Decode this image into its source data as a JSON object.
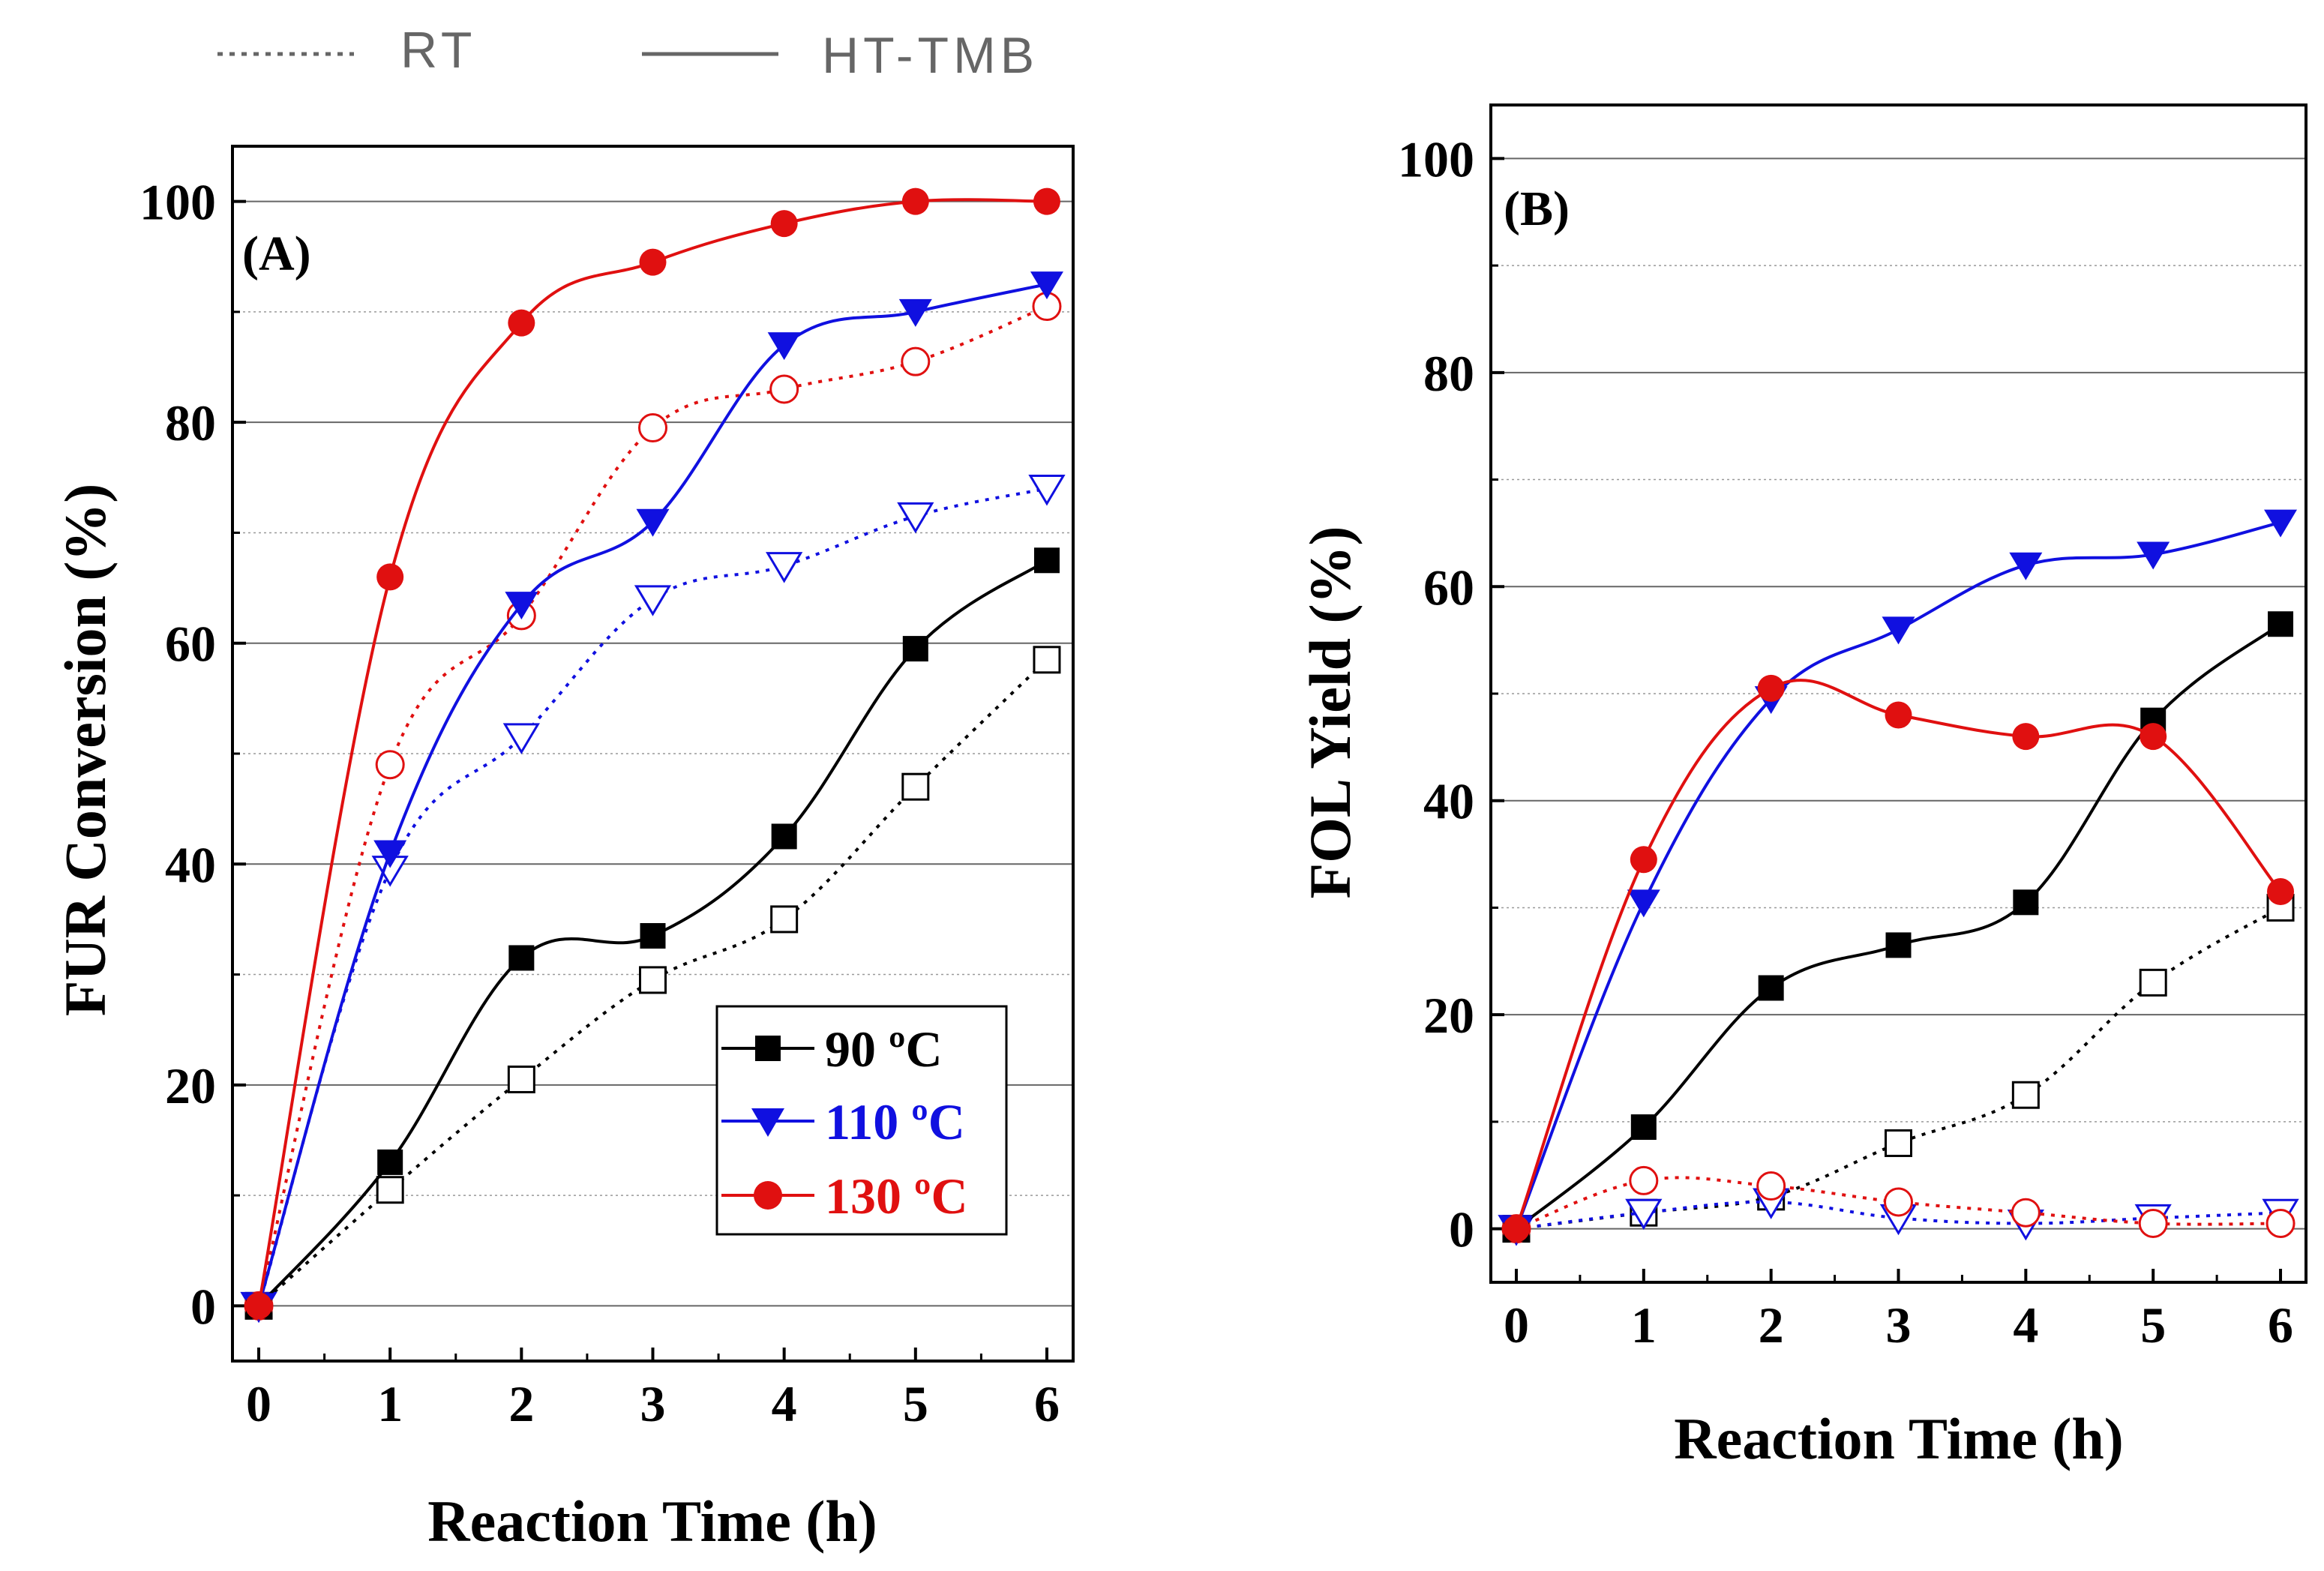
{
  "legend_top": {
    "rt_label": "RT",
    "ht_label": "HT-TMB"
  },
  "colors": {
    "s90": "#000000",
    "s110": "#1010e0",
    "s130": "#e01010"
  },
  "chart_data": [
    {
      "type": "line",
      "panel_label": "(A)",
      "title": "",
      "xlabel": "Reaction Time (h)",
      "ylabel": "FUR Conversion (%)",
      "xlim": [
        -0.2,
        6.2
      ],
      "ylim": [
        -5,
        105
      ],
      "xticks": [
        0,
        1,
        2,
        3,
        4,
        5,
        6
      ],
      "yticks": [
        0,
        20,
        40,
        60,
        80,
        100
      ],
      "grid": "horizontal",
      "legend_position": "bottom-right",
      "x": [
        0,
        1,
        2,
        3,
        4,
        5,
        6
      ],
      "series": [
        {
          "name": "90 ºC",
          "key": "s90",
          "marker": "square",
          "ht": [
            0,
            13,
            31.5,
            33.5,
            42.5,
            59.5,
            67.5
          ],
          "rt": [
            0,
            10.5,
            20.5,
            29.5,
            35,
            47,
            58.5
          ]
        },
        {
          "name": "110 ºC",
          "key": "s110",
          "marker": "triangle-down",
          "ht": [
            0,
            41,
            63.5,
            71,
            87,
            90,
            92.5
          ],
          "rt": [
            0,
            39.5,
            51.5,
            64,
            67,
            71.5,
            74
          ]
        },
        {
          "name": "130 ºC",
          "key": "s130",
          "marker": "circle",
          "ht": [
            0,
            66,
            89,
            94.5,
            98,
            100,
            100
          ],
          "rt": [
            0,
            49,
            62.5,
            79.5,
            83,
            85.5,
            90.5
          ]
        }
      ]
    },
    {
      "type": "line",
      "panel_label": "(B)",
      "title": "",
      "xlabel": "Reaction Time (h)",
      "ylabel": "FOL Yield (%)",
      "xlim": [
        -0.2,
        6.2
      ],
      "ylim": [
        -5,
        105
      ],
      "xticks": [
        0,
        1,
        2,
        3,
        4,
        5,
        6
      ],
      "yticks": [
        0,
        20,
        40,
        60,
        80,
        100
      ],
      "grid": "horizontal",
      "x": [
        0,
        1,
        2,
        3,
        4,
        5,
        6
      ],
      "series": [
        {
          "name": "90 ºC",
          "key": "s90",
          "marker": "square",
          "ht": [
            0,
            9.5,
            22.5,
            26.5,
            30.5,
            47.5,
            56.5
          ],
          "rt": [
            0,
            1.5,
            3,
            8,
            12.5,
            23,
            30
          ]
        },
        {
          "name": "110 ºC",
          "key": "s110",
          "marker": "triangle-down",
          "ht": [
            0,
            30.5,
            49.5,
            56,
            62,
            63,
            66
          ],
          "rt": [
            0,
            1.5,
            2.5,
            1,
            0.5,
            1,
            1.5
          ]
        },
        {
          "name": "130 ºC",
          "key": "s130",
          "marker": "circle",
          "ht": [
            0,
            34.5,
            50.5,
            48,
            46,
            46,
            31.5
          ],
          "rt": [
            0,
            4.5,
            4,
            2.5,
            1.5,
            0.5,
            0.5
          ]
        }
      ]
    }
  ]
}
